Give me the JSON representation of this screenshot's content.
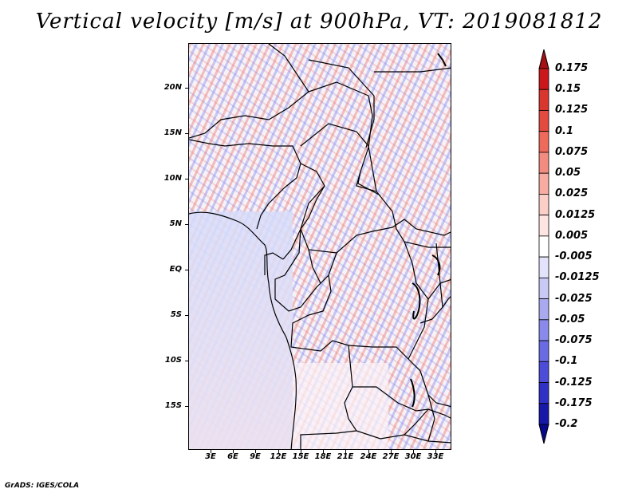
{
  "title": "Vertical velocity [m/s] at 900hPa, VT: 2019081812",
  "credit": "GrADS: IGES/COLA",
  "map": {
    "lat_labels": [
      "20N",
      "15N",
      "10N",
      "5N",
      "EQ",
      "5S",
      "10S",
      "15S"
    ],
    "lon_labels": [
      "3E",
      "6E",
      "9E",
      "12E",
      "15E",
      "18E",
      "21E",
      "24E",
      "27E",
      "30E",
      "33E"
    ]
  },
  "colorbar": {
    "labels": [
      "0.175",
      "0.15",
      "0.125",
      "0.1",
      "0.075",
      "0.05",
      "0.025",
      "0.0125",
      "0.005",
      "-0.005",
      "-0.0125",
      "-0.025",
      "-0.05",
      "-0.075",
      "-0.1",
      "-0.125",
      "-0.175",
      "-0.2"
    ],
    "colors": [
      "#a50f15",
      "#cb181d",
      "#d9362e",
      "#e34a40",
      "#ee6a5a",
      "#f28c80",
      "#f7aca2",
      "#fbcfc8",
      "#fde6e2",
      "#ffffff",
      "#e3e3fb",
      "#c9c9f6",
      "#a9a9f0",
      "#8a8aea",
      "#6a6ae3",
      "#4c4cd8",
      "#3030c4",
      "#1818a8",
      "#08088a"
    ]
  }
}
